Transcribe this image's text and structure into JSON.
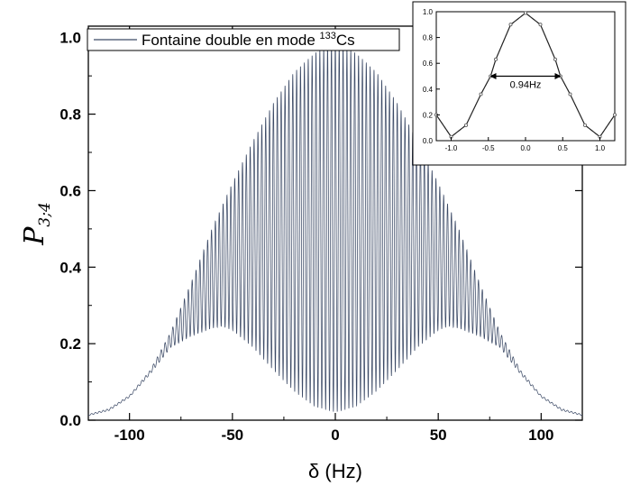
{
  "chart_data": [
    {
      "type": "line",
      "title": "",
      "xlabel": "δ (Hz)",
      "ylabel": {
        "main": "P",
        "sub": "3;4"
      },
      "xlim": [
        -120,
        120
      ],
      "ylim": [
        0,
        1.03
      ],
      "xticks": [
        -100,
        -50,
        0,
        50,
        100
      ],
      "xtick_labels": [
        "-100",
        "-50",
        "0",
        "50",
        "100"
      ],
      "yticks": [
        0,
        0.2,
        0.4,
        0.6,
        0.8,
        1.0
      ],
      "ytick_labels": [
        "0.0",
        "0.2",
        "0.4",
        "0.6",
        "0.8",
        "1.0"
      ],
      "grid": false,
      "legend": {
        "placement": "top-left",
        "text": "Fontaine double en mode ",
        "superscript": "133",
        "suffix": "Cs"
      },
      "series": [
        {
          "name": "Fontaine double en mode 133Cs",
          "color": "#3c4a66",
          "model": "ramsey_fringes",
          "fringe_period_hz": 1.88,
          "x": [
            -120,
            -110,
            -100,
            -90,
            -80,
            -70,
            -60,
            -55,
            -50,
            -40,
            -30,
            -20,
            -10,
            0,
            10,
            20,
            30,
            40,
            50,
            55,
            60,
            70,
            80,
            90,
            100,
            110,
            120
          ],
          "upper_envelope": [
            0.015,
            0.03,
            0.065,
            0.13,
            0.23,
            0.36,
            0.5,
            0.56,
            0.62,
            0.73,
            0.83,
            0.91,
            0.96,
            0.99,
            0.96,
            0.91,
            0.83,
            0.73,
            0.62,
            0.56,
            0.5,
            0.36,
            0.23,
            0.13,
            0.065,
            0.03,
            0.015
          ],
          "lower_envelope": [
            0.012,
            0.025,
            0.06,
            0.12,
            0.19,
            0.22,
            0.24,
            0.245,
            0.235,
            0.19,
            0.13,
            0.075,
            0.035,
            0.02,
            0.035,
            0.075,
            0.13,
            0.19,
            0.235,
            0.245,
            0.24,
            0.22,
            0.19,
            0.12,
            0.06,
            0.025,
            0.012
          ]
        }
      ]
    },
    {
      "type": "line",
      "title": "",
      "xlabel": "",
      "ylabel": "",
      "xlim": [
        -1.2,
        1.2
      ],
      "ylim": [
        0,
        1.0
      ],
      "xticks": [
        -1.0,
        -0.5,
        0.0,
        0.5,
        1.0
      ],
      "xtick_labels": [
        "-1.0",
        "-0.5",
        "0.0",
        "0.5",
        "1.0"
      ],
      "yticks": [
        0,
        0.2,
        0.4,
        0.6,
        0.8,
        1.0
      ],
      "ytick_labels": [
        "0.0",
        "0.2",
        "0.4",
        "0.6",
        "0.8",
        "1.0"
      ],
      "grid": false,
      "annotation": {
        "text": "0.94Hz",
        "x_from": -0.47,
        "x_to": 0.47,
        "y": 0.5
      },
      "series": [
        {
          "color": "#222222",
          "model": "central_fringe",
          "x": [
            -1.2,
            -1.0,
            -0.8,
            -0.6,
            -0.47,
            -0.4,
            -0.2,
            0.0,
            0.2,
            0.4,
            0.47,
            0.6,
            0.8,
            1.0,
            1.2
          ],
          "y": [
            0.2,
            0.03,
            0.12,
            0.36,
            0.5,
            0.63,
            0.9,
            0.99,
            0.9,
            0.63,
            0.5,
            0.36,
            0.12,
            0.03,
            0.2
          ]
        }
      ]
    }
  ]
}
